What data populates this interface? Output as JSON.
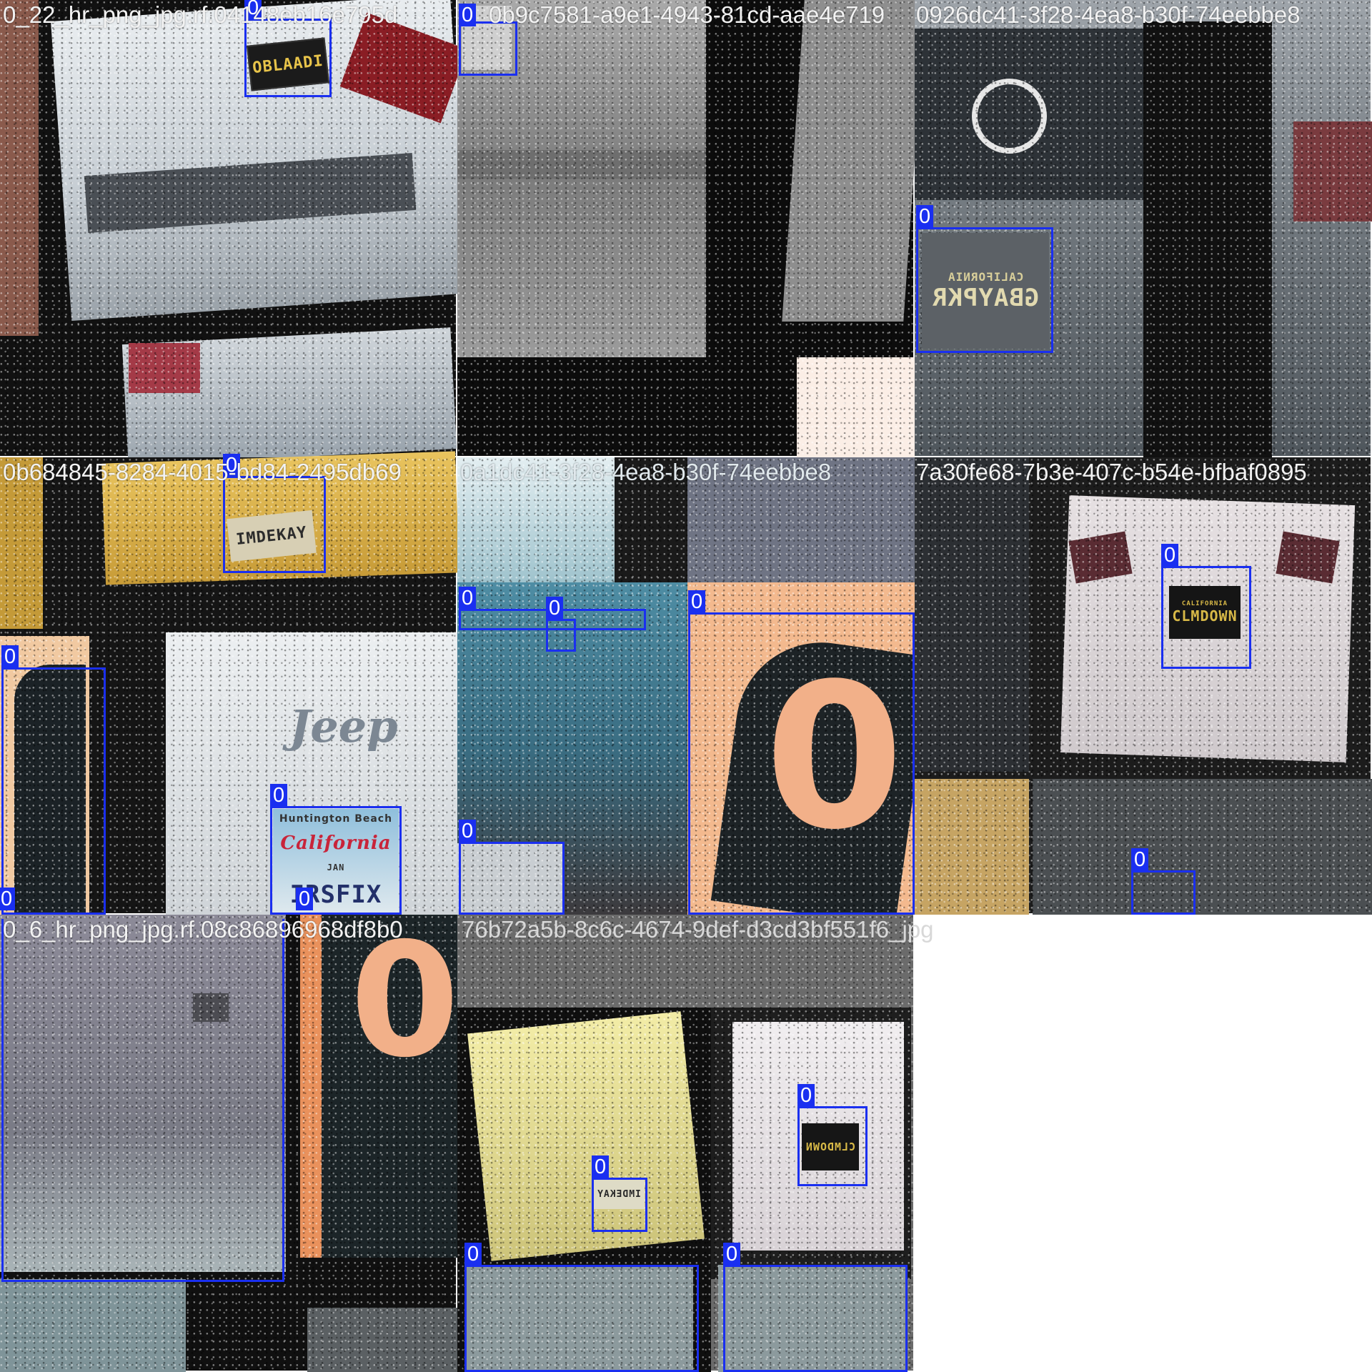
{
  "mosaic": {
    "tiles": [
      {
        "id": "t0",
        "title": "0_22_hr_png_jpg.rf.04148eb16e795d",
        "plate_text": "OBLAADI",
        "boxes": [
          {
            "label": "0"
          }
        ]
      },
      {
        "id": "t1",
        "title": "0b9c7581-a9e1-4943-81cd-aae4e719",
        "boxes": [
          {
            "label": "0"
          }
        ]
      },
      {
        "id": "t2",
        "title": "0926dc41-3f28-4ea8-b30f-74eebbe8",
        "plate_text": "GBAYPKR",
        "plate_state": "CALIFORNIA",
        "boxes": [
          {
            "label": "0"
          }
        ]
      },
      {
        "id": "t3",
        "title": "0b684845-8284-4015-bd84-2495db69",
        "plate_text": "IMDEKAY",
        "brand_text": "Jeep",
        "plate2_top": "Huntington Beach",
        "plate2_state": "California",
        "plate2_month": "JAN",
        "plate2_text": "IRSFIX",
        "boxes": [
          {
            "label": "0"
          },
          {
            "label": "0"
          },
          {
            "label": "0"
          },
          {
            "label": "0"
          },
          {
            "label": "0"
          }
        ]
      },
      {
        "id": "t4",
        "title": "0a1dc41-3f28-4ea8-b30f-74eebbe8",
        "big_text": "0",
        "boxes": [
          {
            "label": "0"
          },
          {
            "label": "0"
          },
          {
            "label": "0"
          },
          {
            "label": "0"
          }
        ]
      },
      {
        "id": "t5",
        "title": "7a30fe68-7b3e-407c-b54e-bfbaf0895",
        "plate_text": "CLMDOWN",
        "plate_state": "CALIFORNIA",
        "boxes": [
          {
            "label": "0"
          },
          {
            "label": "0"
          }
        ]
      },
      {
        "id": "t6",
        "title": "0_6_hr_png_jpg.rf.08c86896968df8b0",
        "big_text": "0",
        "boxes": [
          {
            "label": "0"
          }
        ]
      },
      {
        "id": "t7",
        "title": "76b72a5b-8c6c-4674-9def-d3cd3bf551f6_jpg",
        "plate_text": "IMDEKAY",
        "plate2_text": "CLMDOWN",
        "boxes": [
          {
            "label": "0"
          },
          {
            "label": "0"
          },
          {
            "label": "0"
          },
          {
            "label": "0"
          }
        ]
      }
    ]
  },
  "colors": {
    "box": "#1a2ff0",
    "label_text": "#ffffff",
    "title_text": "#f2f2f2"
  }
}
